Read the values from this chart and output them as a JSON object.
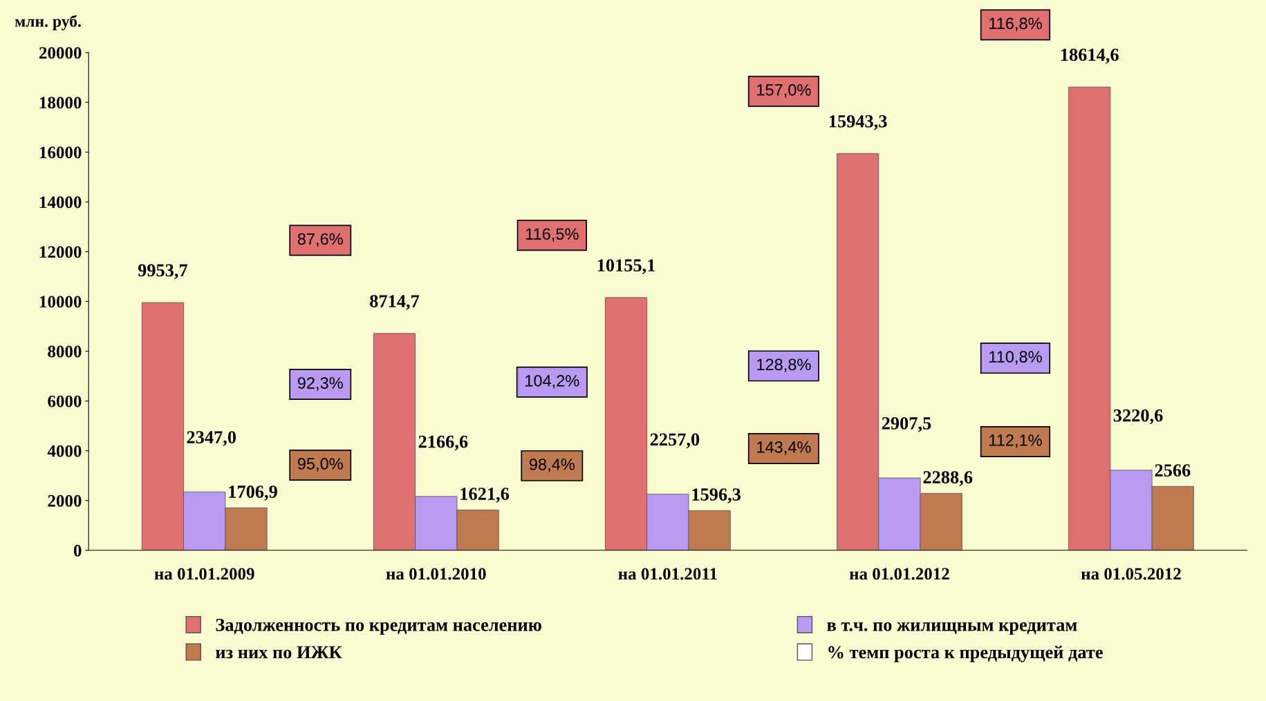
{
  "chart_data": {
    "type": "bar",
    "ylabel": "млн. руб.",
    "categories": [
      "на 01.01.2009",
      "на 01.01.2010",
      "на 01.01.2011",
      "на 01.01.2012",
      "на 01.05.2012"
    ],
    "series": [
      {
        "name": "Задолженность по кредитам населению",
        "color": "#e07070",
        "values": [
          9953.7,
          8714.7,
          10155.1,
          15943.3,
          18614.6
        ],
        "value_labels": [
          "9953,7",
          "8714,7",
          "10155,1",
          "15943,3",
          "18614,6"
        ]
      },
      {
        "name": "в т.ч. по жилищным кредитам",
        "color": "#b99af2",
        "values": [
          2347.0,
          2166.6,
          2257.0,
          2907.5,
          3220.6
        ],
        "value_labels": [
          "2347,0",
          "2166,6",
          "2257,0",
          "2907,5",
          "3220,6"
        ]
      },
      {
        "name": "из них по ИЖК",
        "color": "#c07a50",
        "values": [
          1706.9,
          1621.6,
          1596.3,
          2288.6,
          2566
        ],
        "value_labels": [
          "1706,9",
          "1621,6",
          "1596,3",
          "2288,6",
          "2566"
        ]
      }
    ],
    "ylim": [
      0,
      20000
    ],
    "yticks": [
      0,
      2000,
      4000,
      6000,
      8000,
      10000,
      12000,
      14000,
      16000,
      18000,
      20000
    ],
    "grid": false,
    "legend": "bottom",
    "annotations": [
      "% темп роста к предыдущей дате",
      "87,6%",
      "92,3%",
      "95,0%",
      "116,5%",
      "104,2%",
      "98,4%",
      "157,0%",
      "128,8%",
      "143,4%",
      "116,8%",
      "110,8%",
      "112,1%"
    ]
  }
}
